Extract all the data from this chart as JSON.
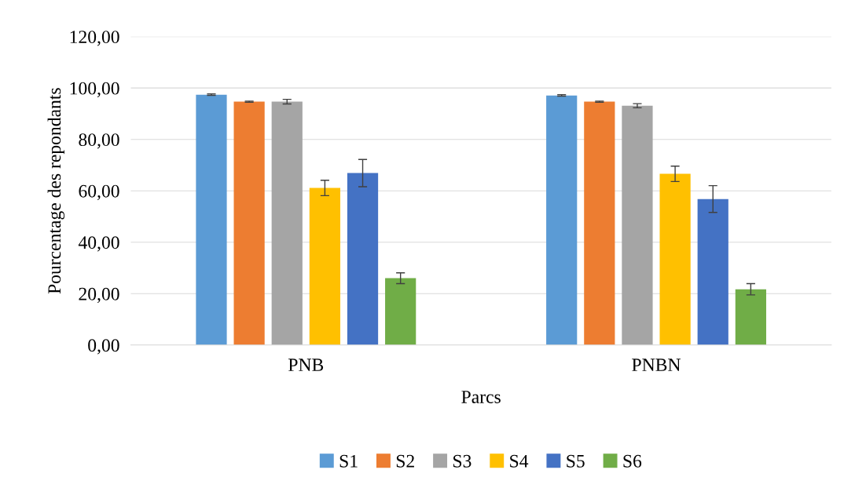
{
  "chart_data": {
    "type": "bar",
    "xlabel": "Parcs",
    "ylabel": "Pourcentage des repondants",
    "categories": [
      "PNB",
      "PNBN"
    ],
    "series": [
      {
        "name": "S1",
        "color": "#5b9bd5",
        "values": [
          97.4,
          97.1
        ],
        "errors": [
          0.3,
          0.3
        ]
      },
      {
        "name": "S2",
        "color": "#ed7d31",
        "values": [
          94.7,
          94.7
        ],
        "errors": [
          0.2,
          0.2
        ]
      },
      {
        "name": "S3",
        "color": "#a5a5a5",
        "values": [
          94.7,
          93.1
        ],
        "errors": [
          0.9,
          0.8
        ]
      },
      {
        "name": "S4",
        "color": "#ffc000",
        "values": [
          61.1,
          66.6
        ],
        "errors": [
          3.0,
          3.0
        ]
      },
      {
        "name": "S5",
        "color": "#4472c4",
        "values": [
          66.9,
          56.8
        ],
        "errors": [
          5.3,
          5.2
        ]
      },
      {
        "name": "S6",
        "color": "#70ad47",
        "values": [
          26.0,
          21.7
        ],
        "errors": [
          2.1,
          2.2
        ]
      }
    ],
    "ylim": [
      0,
      120
    ],
    "yticks": [
      {
        "value": 0,
        "label": "0,00"
      },
      {
        "value": 20,
        "label": "20,00"
      },
      {
        "value": 40,
        "label": "40,00"
      },
      {
        "value": 60,
        "label": "60,00"
      },
      {
        "value": 80,
        "label": "80,00"
      },
      {
        "value": 100,
        "label": "100,00"
      },
      {
        "value": 120,
        "label": "120,00"
      }
    ],
    "grid": "y",
    "legend": "bottom"
  }
}
